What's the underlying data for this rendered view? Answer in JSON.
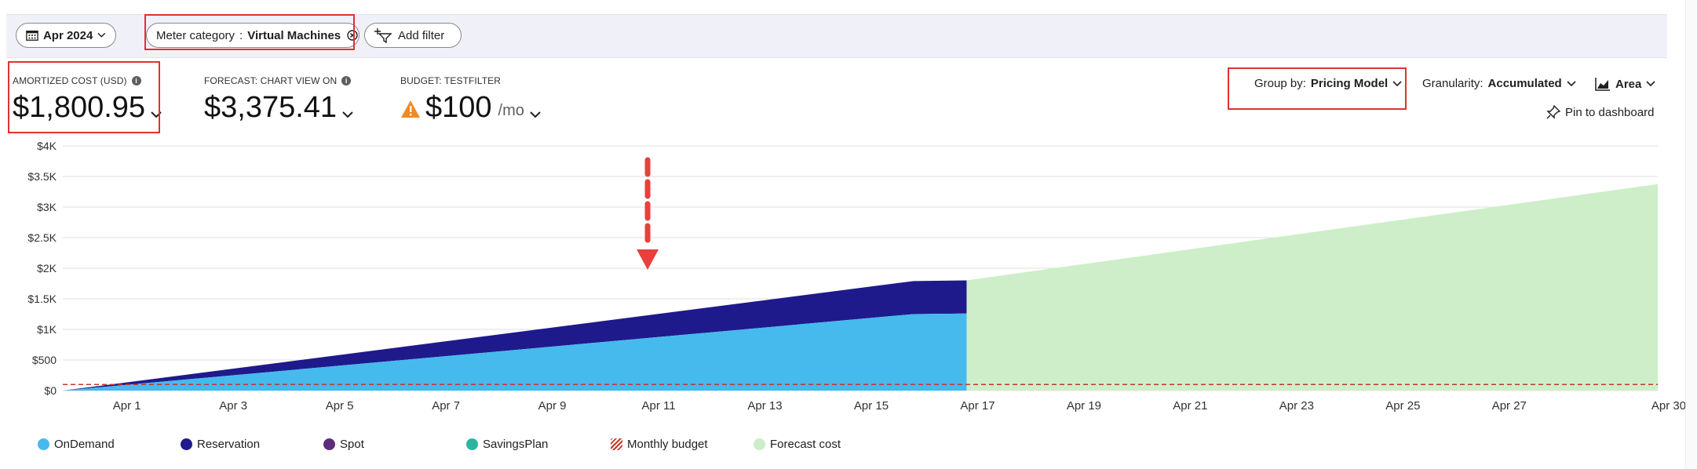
{
  "filters": {
    "date_label": "Apr 2024",
    "meter_key": "Meter category",
    "meter_sep": ":",
    "meter_value": "Virtual Machines",
    "add_filter_label": "Add filter"
  },
  "kpis": {
    "amortized": {
      "label": "AMORTIZED COST (USD)",
      "value": "$1,800.95"
    },
    "forecast": {
      "label": "FORECAST: CHART VIEW ON",
      "value": "$3,375.41"
    },
    "budget": {
      "label": "BUDGET: TESTFILTER",
      "value": "$100",
      "unit": "/mo"
    }
  },
  "controls": {
    "group_by_label": "Group by:",
    "group_by_value": "Pricing Model",
    "granularity_label": "Granularity:",
    "granularity_value": "Accumulated",
    "view_value": "Area",
    "pin_label": "Pin to dashboard"
  },
  "colors": {
    "ondemand": "#46b9ed",
    "reservation": "#1e1a8c",
    "spot": "#5c2d7a",
    "savingsplan": "#2bb5a0",
    "budget": "#c0392b",
    "forecast": "#cdeec8",
    "annotation": "#e8403c"
  },
  "chart_data": {
    "type": "area",
    "title": "",
    "xlabel": "",
    "ylabel": "",
    "ylim": [
      0,
      4000
    ],
    "yticks": [
      {
        "value": 0,
        "label": "$0"
      },
      {
        "value": 500,
        "label": "$500"
      },
      {
        "value": 1000,
        "label": "$1K"
      },
      {
        "value": 1500,
        "label": "$1.5K"
      },
      {
        "value": 2000,
        "label": "$2K"
      },
      {
        "value": 2500,
        "label": "$2.5K"
      },
      {
        "value": 3000,
        "label": "$3K"
      },
      {
        "value": 3500,
        "label": "$3.5K"
      },
      {
        "value": 4000,
        "label": "$4K"
      }
    ],
    "xlim": [
      0,
      30
    ],
    "xticks": [
      {
        "day": 1,
        "label": "Apr 1"
      },
      {
        "day": 3,
        "label": "Apr 3"
      },
      {
        "day": 5,
        "label": "Apr 5"
      },
      {
        "day": 7,
        "label": "Apr 7"
      },
      {
        "day": 9,
        "label": "Apr 9"
      },
      {
        "day": 11,
        "label": "Apr 11"
      },
      {
        "day": 13,
        "label": "Apr 13"
      },
      {
        "day": 15,
        "label": "Apr 15"
      },
      {
        "day": 17,
        "label": "Apr 17"
      },
      {
        "day": 19,
        "label": "Apr 19"
      },
      {
        "day": 21,
        "label": "Apr 21"
      },
      {
        "day": 23,
        "label": "Apr 23"
      },
      {
        "day": 25,
        "label": "Apr 25"
      },
      {
        "day": 27,
        "label": "Apr 27"
      },
      {
        "day": 30,
        "label": "Apr 30"
      }
    ],
    "series": [
      {
        "name": "OnDemand",
        "x": [
          0,
          16,
          17
        ],
        "values": [
          0,
          1250,
          1260
        ]
      },
      {
        "name": "Reservation",
        "x": [
          0,
          16,
          17
        ],
        "values": [
          0,
          540,
          541
        ]
      },
      {
        "name": "Forecast cost",
        "x": [
          17,
          30
        ],
        "values": [
          1801,
          3375
        ]
      }
    ],
    "budget_line": 100,
    "legend": [
      "OnDemand",
      "Reservation",
      "Spot",
      "SavingsPlan",
      "Monthly budget",
      "Forecast cost"
    ],
    "annotation": "arrow pointing at Apr 11"
  }
}
